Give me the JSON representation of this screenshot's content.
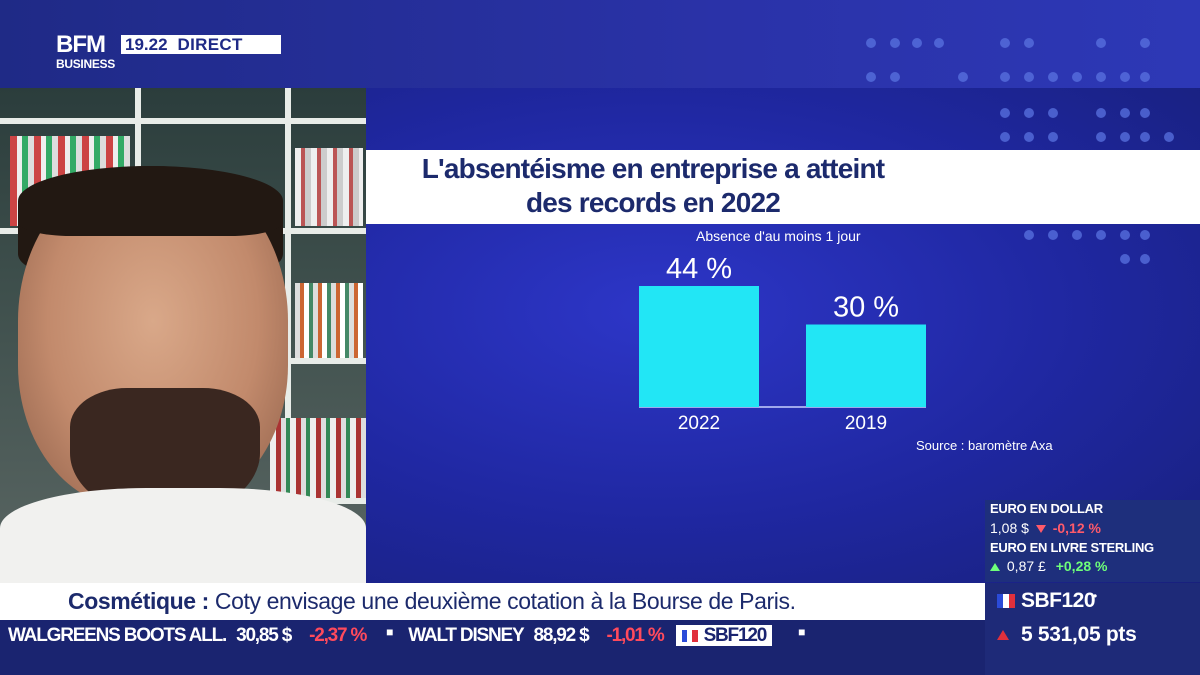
{
  "header": {
    "logo_line1": "BFM",
    "logo_line2": "BUSINESS",
    "time": "19.22",
    "live_label": "DIRECT"
  },
  "graphic": {
    "title_line1": "L'absentéisme en entreprise a atteint",
    "title_line2": "des records en 2022",
    "subtitle": "Absence d'au moins 1 jour",
    "source": "Source : baromètre Axa",
    "colors": {
      "bar": "#22e6f5",
      "background": "#2530b4",
      "title_text": "#1c2a6c"
    }
  },
  "chart_data": {
    "type": "bar",
    "title": "L'absentéisme en entreprise a atteint des records en 2022",
    "subtitle": "Absence d'au moins 1 jour",
    "categories": [
      "2022",
      "2019"
    ],
    "values": [
      44,
      30
    ],
    "value_labels": [
      "44 %",
      "30 %"
    ],
    "unit": "%",
    "ylim": [
      0,
      44
    ],
    "grid": false,
    "legend": "none",
    "source": "Source : baromètre Axa"
  },
  "market": {
    "items": [
      {
        "label": "EURO EN DOLLAR",
        "value": "1,08 $",
        "change": "-0,12 %",
        "direction": "down"
      },
      {
        "label": "EURO EN LIVRE STERLING",
        "value": "0,87 £",
        "change": "+0,28 %",
        "direction": "up"
      }
    ]
  },
  "headline": {
    "keyword": "Cosmétique :",
    "text": "Coty envisage une deuxième cotation à la Bourse de Paris."
  },
  "sbf": {
    "name": "SBF120",
    "value": "5 531,05 pts"
  },
  "ticker": {
    "items": [
      {
        "name": "WALGREENS BOOTS ALL.",
        "price": "30,85 $",
        "change": "-2,37 %"
      },
      {
        "name": "WALT DISNEY",
        "price": "88,92 $",
        "change": "-1,01 %"
      }
    ],
    "index_pill": "SBF120"
  }
}
